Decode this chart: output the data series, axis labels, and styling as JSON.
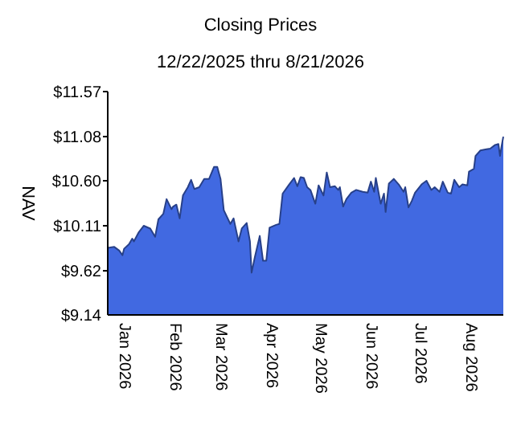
{
  "chart_data": {
    "type": "area",
    "title": "Closing Prices",
    "subtitle": "12/22/2025 thru 8/21/2026",
    "ylabel": "NAV",
    "xlim": [
      "2025-12-22",
      "2026-08-21"
    ],
    "xticks": [
      {
        "value": "2026-01-01",
        "label": "Jan 2026"
      },
      {
        "value": "2026-02-01",
        "label": "Feb 2026"
      },
      {
        "value": "2026-03-01",
        "label": "Mar 2026"
      },
      {
        "value": "2026-04-01",
        "label": "Apr 2026"
      },
      {
        "value": "2026-05-01",
        "label": "May 2026"
      },
      {
        "value": "2026-06-01",
        "label": "Jun 2026"
      },
      {
        "value": "2026-07-01",
        "label": "Jul 2026"
      },
      {
        "value": "2026-08-01",
        "label": "Aug 2026"
      }
    ],
    "ylim": [
      9.14,
      11.57
    ],
    "yticks": [
      {
        "value": 9.14,
        "label": "$9.14"
      },
      {
        "value": 9.62,
        "label": "$9.62"
      },
      {
        "value": 10.11,
        "label": "$10.11"
      },
      {
        "value": 10.6,
        "label": "$10.60"
      },
      {
        "value": 11.08,
        "label": "$11.08"
      },
      {
        "value": 11.57,
        "label": "$11.57"
      }
    ],
    "grid": false,
    "x": [
      "2025-12-22",
      "2025-12-26",
      "2025-12-29",
      "2025-12-31",
      "2026-01-01",
      "2026-01-04",
      "2026-01-06",
      "2026-01-07",
      "2026-01-10",
      "2026-01-13",
      "2026-01-17",
      "2026-01-20",
      "2026-01-22",
      "2026-01-25",
      "2026-01-27",
      "2026-01-30",
      "2026-01-31",
      "2026-02-02",
      "2026-02-04",
      "2026-02-06",
      "2026-02-09",
      "2026-02-11",
      "2026-02-13",
      "2026-02-16",
      "2026-02-19",
      "2026-02-22",
      "2026-02-25",
      "2026-02-27",
      "2026-03-01",
      "2026-03-03",
      "2026-03-07",
      "2026-03-09",
      "2026-03-12",
      "2026-03-14",
      "2026-03-17",
      "2026-03-19",
      "2026-03-20",
      "2026-03-22",
      "2026-03-25",
      "2026-03-27",
      "2026-03-29",
      "2026-03-31",
      "2026-04-04",
      "2026-04-06",
      "2026-04-08",
      "2026-04-12",
      "2026-04-15",
      "2026-04-17",
      "2026-04-19",
      "2026-04-21",
      "2026-04-23",
      "2026-04-25",
      "2026-04-28",
      "2026-04-30",
      "2026-05-03",
      "2026-05-05",
      "2026-05-07",
      "2026-05-10",
      "2026-05-12",
      "2026-05-13",
      "2026-05-15",
      "2026-05-17",
      "2026-05-20",
      "2026-05-23",
      "2026-05-27",
      "2026-05-30",
      "2026-06-01",
      "2026-06-03",
      "2026-06-04",
      "2026-06-07",
      "2026-06-09",
      "2026-06-10",
      "2026-06-12",
      "2026-06-15",
      "2026-06-18",
      "2026-06-21",
      "2026-06-22",
      "2026-06-24",
      "2026-06-26",
      "2026-06-28",
      "2026-07-02",
      "2026-07-05",
      "2026-07-08",
      "2026-07-10",
      "2026-07-13",
      "2026-07-15",
      "2026-07-18",
      "2026-07-20",
      "2026-07-22",
      "2026-07-25",
      "2026-07-27",
      "2026-07-30",
      "2026-07-31",
      "2026-08-03",
      "2026-08-04",
      "2026-08-07",
      "2026-08-10",
      "2026-08-13",
      "2026-08-16",
      "2026-08-18",
      "2026-08-19",
      "2026-08-20",
      "2026-08-21"
    ],
    "series": [
      {
        "color": "#4169e1",
        "values": [
          9.87,
          9.88,
          9.84,
          9.79,
          9.86,
          9.91,
          9.97,
          9.94,
          10.04,
          10.11,
          10.08,
          9.99,
          10.18,
          10.24,
          10.4,
          10.29,
          10.32,
          10.34,
          10.19,
          10.44,
          10.53,
          10.61,
          10.51,
          10.53,
          10.62,
          10.62,
          10.75,
          10.75,
          10.62,
          10.28,
          10.13,
          10.19,
          9.94,
          10.08,
          10.14,
          9.94,
          9.6,
          9.77,
          10.0,
          9.73,
          9.73,
          10.09,
          10.12,
          10.13,
          10.46,
          10.56,
          10.63,
          10.54,
          10.64,
          10.63,
          10.53,
          10.5,
          10.35,
          10.55,
          10.44,
          10.69,
          10.53,
          10.54,
          10.5,
          10.53,
          10.32,
          10.4,
          10.47,
          10.5,
          10.48,
          10.47,
          10.59,
          10.48,
          10.63,
          10.35,
          10.46,
          10.26,
          10.57,
          10.62,
          10.56,
          10.48,
          10.53,
          10.31,
          10.38,
          10.47,
          10.56,
          10.6,
          10.5,
          10.53,
          10.48,
          10.59,
          10.47,
          10.46,
          10.61,
          10.53,
          10.56,
          10.55,
          10.7,
          10.73,
          10.87,
          10.93,
          10.94,
          10.95,
          10.99,
          11.0,
          10.87,
          10.98,
          11.08
        ]
      }
    ]
  }
}
